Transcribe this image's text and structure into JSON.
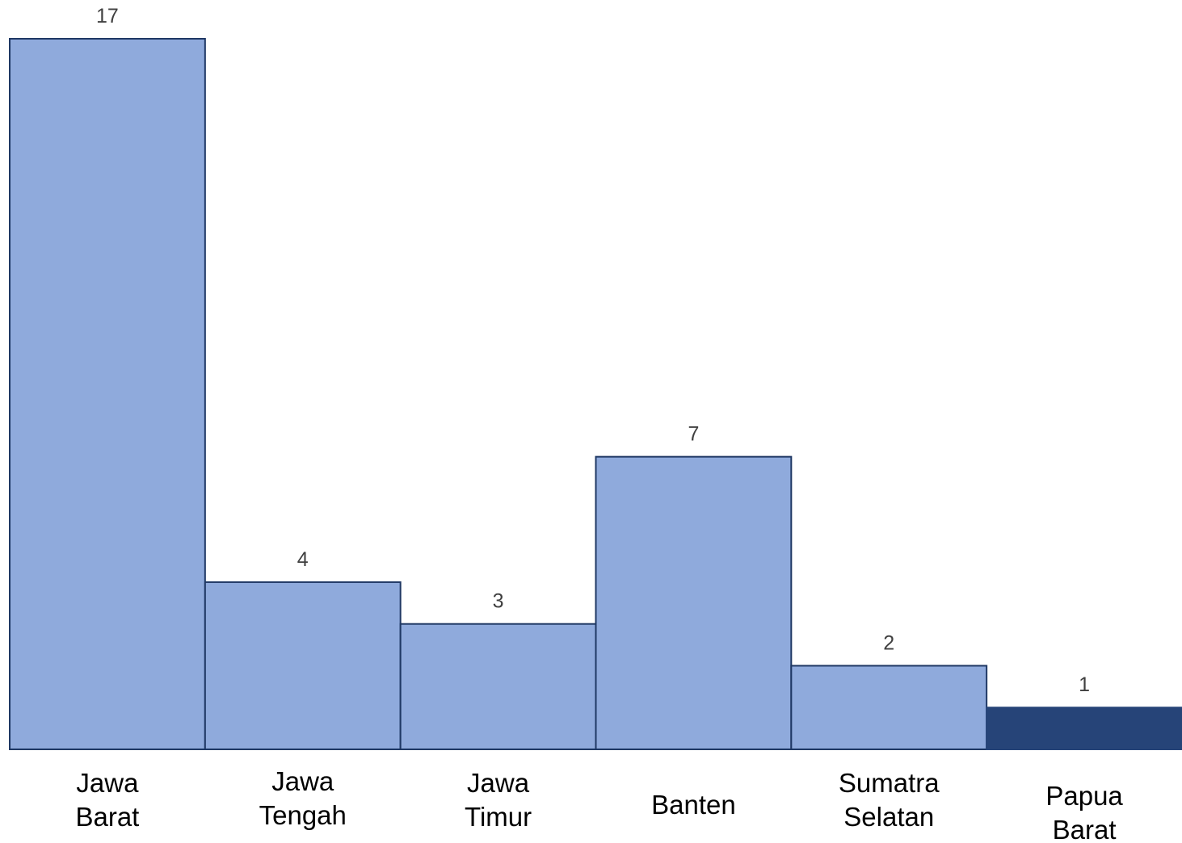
{
  "chart_data": {
    "type": "bar",
    "categories": [
      [
        "Jawa",
        "Barat"
      ],
      [
        "Jawa",
        "Tengah"
      ],
      [
        "Jawa",
        "Timur"
      ],
      [
        "Banten"
      ],
      [
        "Sumatra",
        "Selatan"
      ],
      [
        "Papua",
        "Barat"
      ]
    ],
    "values": [
      17,
      4,
      3,
      7,
      2,
      1
    ],
    "data_labels": [
      "17",
      "4",
      "3",
      "7",
      "2",
      "1"
    ],
    "title": "",
    "xlabel": "",
    "ylabel": "",
    "ylim": [
      0,
      17
    ],
    "grid": false,
    "legend": "none",
    "colors": {
      "bar_fill": "#8faadc",
      "bar_border": "#1f3864",
      "highlight_fill": "#264478"
    },
    "highlight_index": 5
  }
}
